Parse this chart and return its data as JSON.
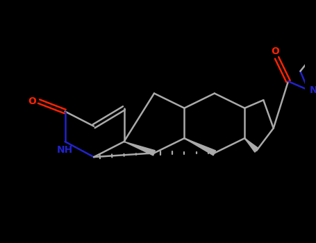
{
  "background_color": "#000000",
  "bond_color": "#AAAAAA",
  "oxygen_color": "#FF2200",
  "nitrogen_color": "#2222CC",
  "figsize": [
    4.55,
    3.5
  ],
  "dpi": 100,
  "xlim": [
    0,
    455
  ],
  "ylim": [
    0,
    350
  ]
}
